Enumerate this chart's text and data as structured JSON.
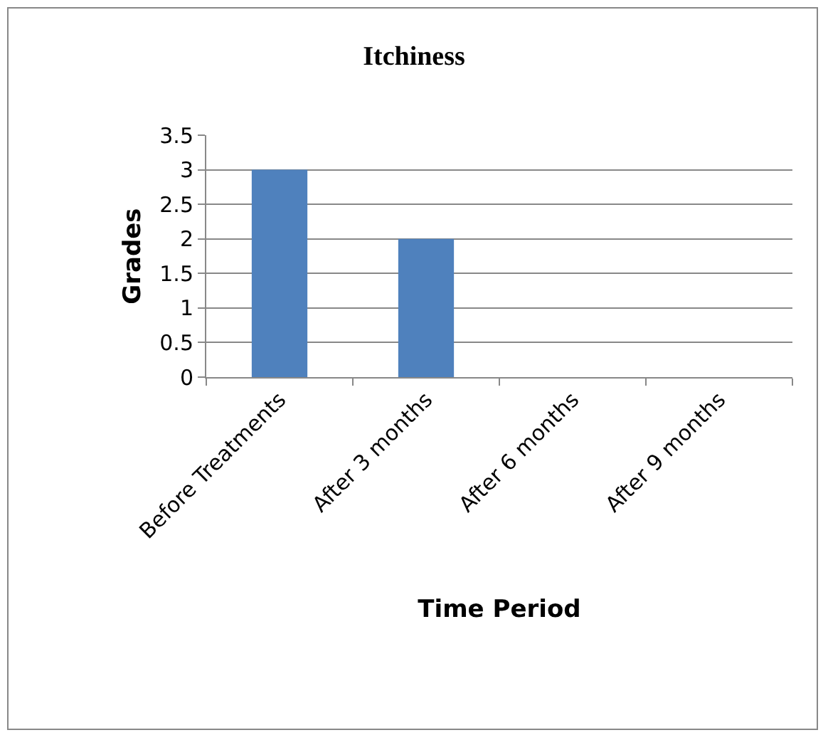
{
  "chart_data": {
    "type": "bar",
    "title": "Itchiness",
    "xlabel": "Time Period",
    "ylabel": "Grades",
    "categories": [
      "Before Treatments",
      "After 3 months",
      "After 6 months",
      "After 9 months"
    ],
    "values": [
      3,
      2,
      0,
      0
    ],
    "color": "#4f81bd",
    "ylim": [
      0,
      3.5
    ],
    "yticks": [
      0,
      0.5,
      1,
      1.5,
      2,
      2.5,
      3,
      3.5
    ],
    "grid": "y"
  }
}
